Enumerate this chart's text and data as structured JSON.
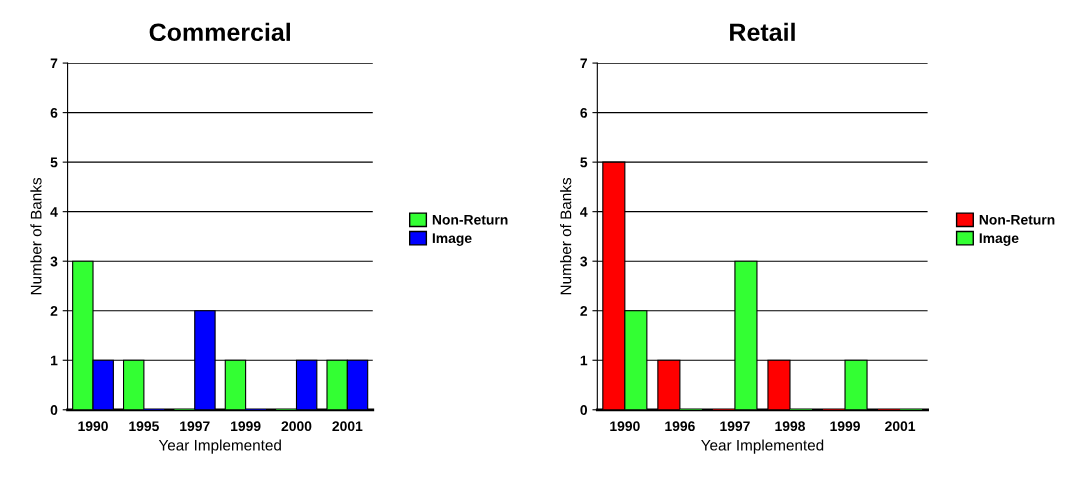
{
  "chart_data": [
    {
      "type": "bar",
      "title": "Commercial",
      "xlabel": "Year Implemented",
      "ylabel": "Number of Banks",
      "categories": [
        "1990",
        "1995",
        "1997",
        "1999",
        "2000",
        "2001"
      ],
      "series": [
        {
          "name": "Non-Return",
          "color": "#33ff33",
          "values": [
            3,
            1,
            0,
            1,
            0,
            1
          ]
        },
        {
          "name": "Image",
          "color": "#0000ff",
          "values": [
            1,
            0,
            2,
            0,
            1,
            1
          ]
        }
      ],
      "ylim": [
        0,
        7
      ],
      "yticks": [
        0,
        1,
        2,
        3,
        4,
        5,
        6,
        7
      ],
      "grid": "y",
      "legend": "right"
    },
    {
      "type": "bar",
      "title": "Retail",
      "xlabel": "Year Implemented",
      "ylabel": "Number of Banks",
      "categories": [
        "1990",
        "1996",
        "1997",
        "1998",
        "1999",
        "2001"
      ],
      "series": [
        {
          "name": "Non-Return",
          "color": "#ff0000",
          "values": [
            5,
            1,
            0,
            1,
            0,
            0
          ]
        },
        {
          "name": "Image",
          "color": "#33ff33",
          "values": [
            2,
            0,
            3,
            0,
            1,
            0
          ]
        }
      ],
      "ylim": [
        0,
        7
      ],
      "yticks": [
        0,
        1,
        2,
        3,
        4,
        5,
        6,
        7
      ],
      "grid": "y",
      "legend": "right"
    }
  ]
}
